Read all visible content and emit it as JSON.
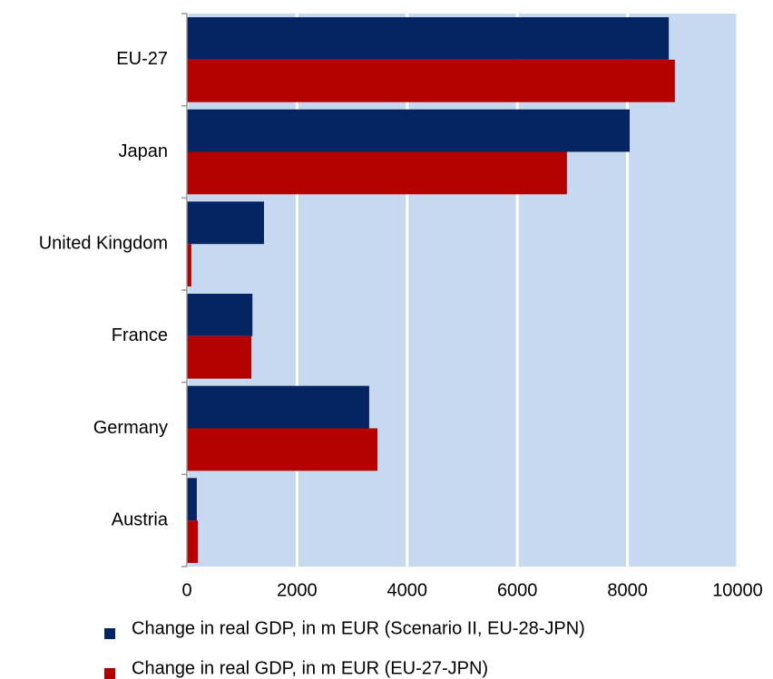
{
  "chart_data": {
    "type": "barh",
    "categories": [
      "EU-27",
      "Japan",
      "United Kingdom",
      "France",
      "Germany",
      "Austria"
    ],
    "series": [
      {
        "name": "Change in real GDP, in m EUR (Scenario II, EU-28-JPN)",
        "color": "#052562",
        "values": [
          8750,
          8040,
          1400,
          1190,
          3310,
          180
        ]
      },
      {
        "name": "Change in real GDP, in m EUR (EU-27-JPN)",
        "color": "#b50000",
        "values": [
          8860,
          6900,
          80,
          1170,
          3460,
          200
        ]
      }
    ],
    "xlim": [
      0,
      10000
    ],
    "xticks": [
      0,
      2000,
      4000,
      6000,
      8000,
      10000
    ],
    "grid": true,
    "background": "#c6d9f0",
    "legend": "bottom"
  }
}
